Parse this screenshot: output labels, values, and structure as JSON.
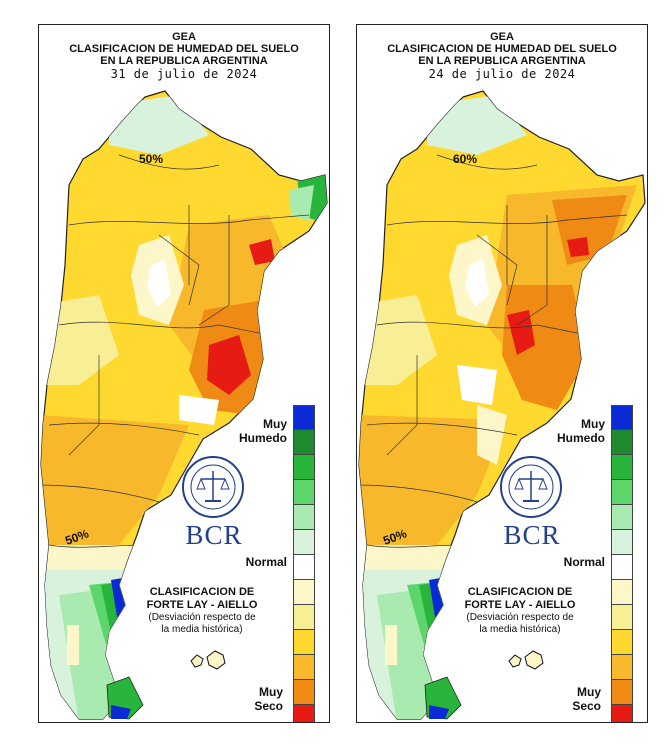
{
  "panels": [
    {
      "org": "GEA",
      "title_line1": "CLASIFICACION DE HUMEDAD DEL SUELO",
      "title_line2": "EN LA REPUBLICA ARGENTINA",
      "date": "31 de julio de 2024",
      "contour_label_north": "50%",
      "contour_label_south": "50%"
    },
    {
      "org": "GEA",
      "title_line1": "CLASIFICACION DE HUMEDAD DEL SUELO",
      "title_line2": "EN LA REPUBLICA ARGENTINA",
      "date": "24 de julio de 2024",
      "contour_label_north": "60%",
      "contour_label_south": "50%"
    }
  ],
  "legend": {
    "top_label_1": "Muy",
    "top_label_2": "Humedo",
    "middle_label": "Normal",
    "bottom_label_1": "Muy",
    "bottom_label_2": "Seco",
    "colors": [
      "#0a2ad6",
      "#1f8a2e",
      "#29b53b",
      "#5cd66a",
      "#a8eab0",
      "#d8f2dc",
      "#ffffff",
      "#fdf6c8",
      "#f7ee95",
      "#ffd92f",
      "#f7b82c",
      "#ef8a14",
      "#e51b14"
    ]
  },
  "brand": {
    "seal_icon": "bolsa-comercio-rosario-seal-icon",
    "name": "BCR"
  },
  "classification": {
    "line1": "CLASIFICACION DE",
    "line2": "FORTE LAY - AIELLO",
    "line3": "(Desviación respecto de",
    "line4": "la media histórica)"
  },
  "islands_icon": "malvinas-islands-icon"
}
